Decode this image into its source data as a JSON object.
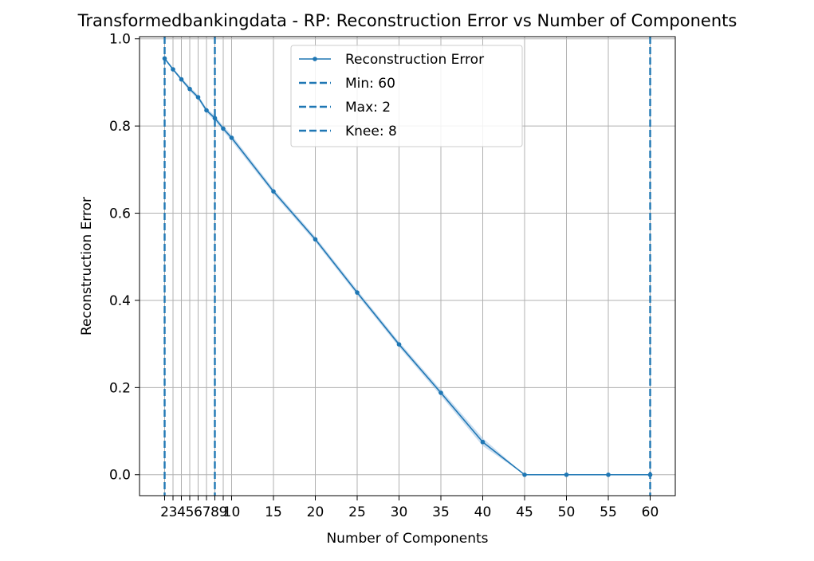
{
  "chart_data": {
    "type": "line",
    "title": "Transformedbankingdata - RP: Reconstruction Error vs Number of Components",
    "xlabel": "Number of Components",
    "ylabel": "Reconstruction Error",
    "xlim": [
      -1,
      63
    ],
    "ylim": [
      -0.048,
      1.005
    ],
    "grid": true,
    "legend_position": "top-center",
    "x_ticks": [
      2,
      3,
      4,
      5,
      6,
      7,
      8,
      9,
      10,
      15,
      20,
      25,
      30,
      35,
      40,
      45,
      50,
      55,
      60
    ],
    "y_ticks": [
      0.0,
      0.2,
      0.4,
      0.6,
      0.8,
      1.0
    ],
    "y_tick_labels": [
      "0.0",
      "0.2",
      "0.4",
      "0.6",
      "0.8",
      "1.0"
    ],
    "series": [
      {
        "name": "Reconstruction Error",
        "color": "#1f77b4",
        "band_color": "#a6c8e6",
        "x": [
          2,
          3,
          4,
          5,
          6,
          7,
          8,
          9,
          10,
          15,
          20,
          25,
          30,
          35,
          40,
          45,
          50,
          55,
          60
        ],
        "values": [
          0.955,
          0.93,
          0.907,
          0.885,
          0.866,
          0.836,
          0.818,
          0.794,
          0.773,
          0.65,
          0.54,
          0.418,
          0.299,
          0.188,
          0.075,
          0.0,
          0.0,
          0.0,
          0.0
        ],
        "band_lower": [
          0.952,
          0.927,
          0.903,
          0.88,
          0.861,
          0.831,
          0.812,
          0.788,
          0.766,
          0.644,
          0.534,
          0.412,
          0.293,
          0.181,
          0.066,
          0.0,
          0.0,
          0.0,
          0.0
        ],
        "band_upper": [
          0.958,
          0.933,
          0.911,
          0.89,
          0.871,
          0.841,
          0.824,
          0.8,
          0.78,
          0.656,
          0.546,
          0.424,
          0.305,
          0.195,
          0.084,
          0.0,
          0.0,
          0.0,
          0.0
        ]
      }
    ],
    "reference_lines": [
      {
        "name": "Min: 60",
        "x": 60,
        "color": "#1f77b4",
        "style": "dashed"
      },
      {
        "name": "Max: 2",
        "x": 2,
        "color": "#1f77b4",
        "style": "dashed"
      },
      {
        "name": "Knee: 8",
        "x": 8,
        "color": "#1f77b4",
        "style": "dashed"
      }
    ]
  }
}
